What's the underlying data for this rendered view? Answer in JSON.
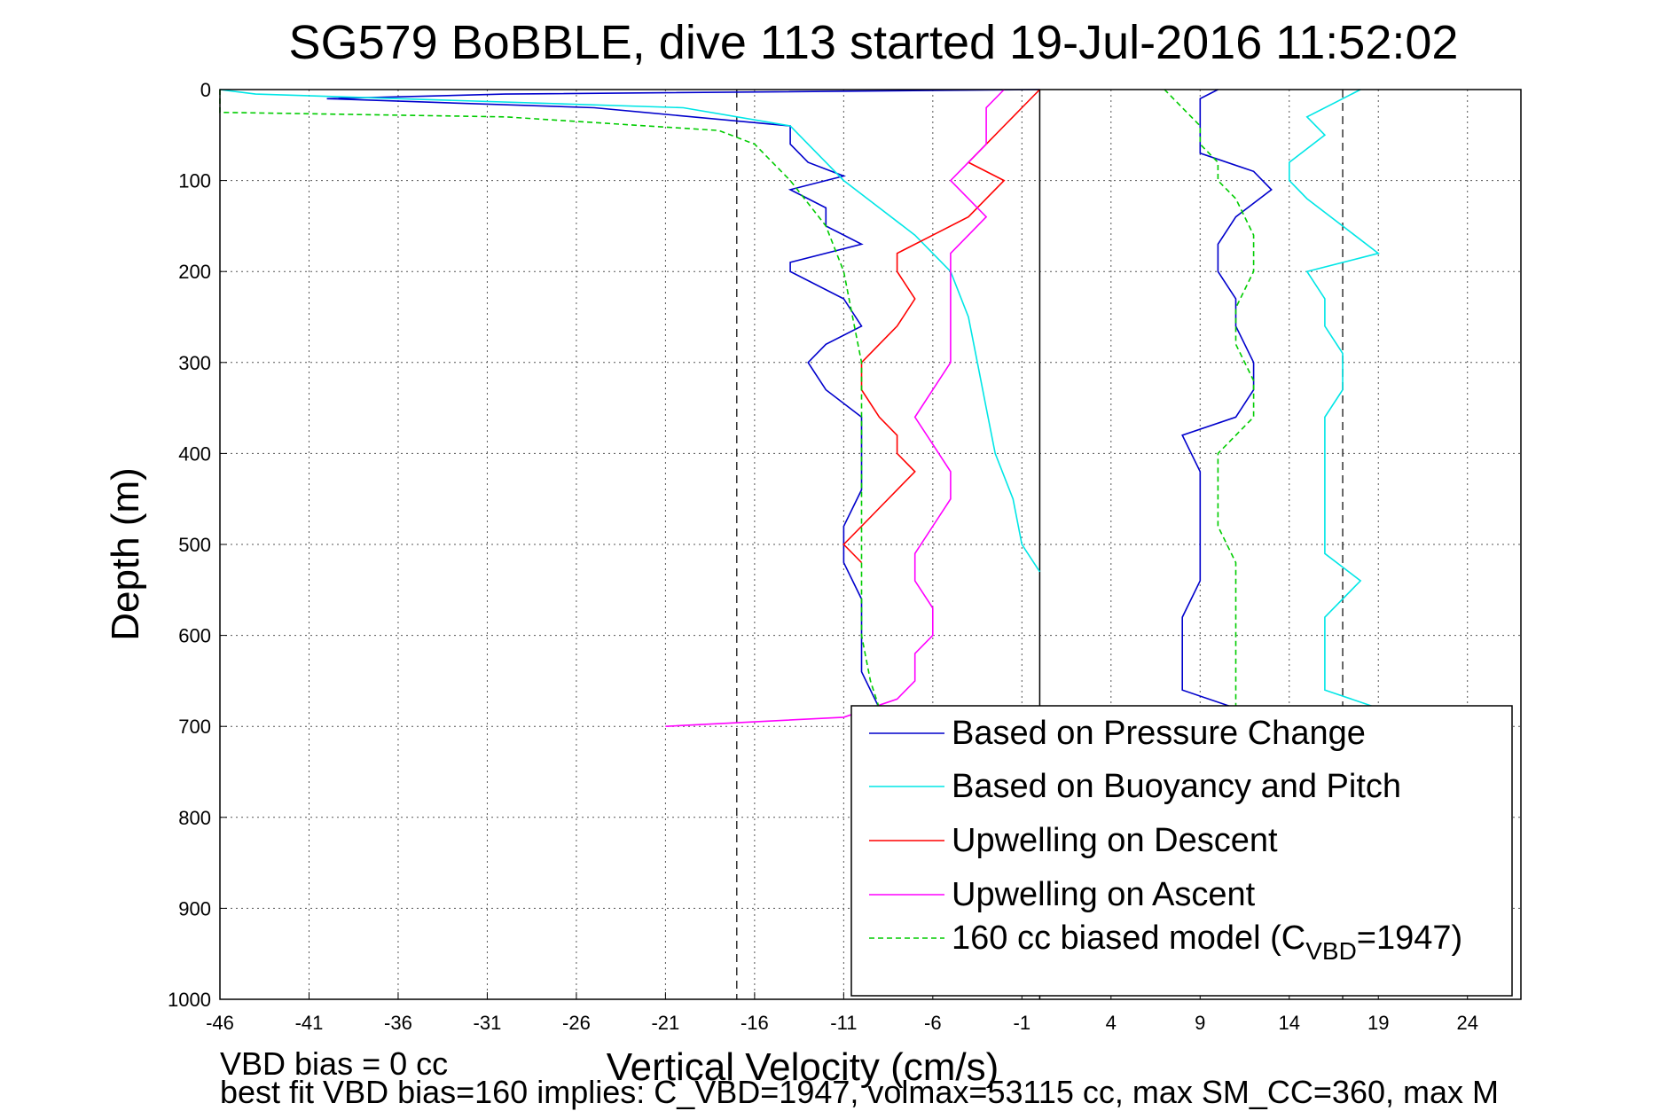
{
  "chart_data": {
    "type": "line",
    "title": "SG579 BoBBLE, dive 113 started 19-Jul-2016 11:52:02",
    "xlabel": "Vertical Velocity (cm/s)",
    "ylabel": "Depth (m)",
    "xlim": [
      -46,
      27
    ],
    "ylim": [
      0,
      1000
    ],
    "y_inverted": true,
    "grid": true,
    "xticks": [
      -46,
      -41,
      -36,
      -31,
      -26,
      -21,
      -16,
      -11,
      -6,
      -1,
      4,
      9,
      14,
      19,
      24
    ],
    "yticks": [
      0,
      100,
      200,
      300,
      400,
      500,
      600,
      700,
      800,
      900,
      1000
    ],
    "vlines_solid": [
      0
    ],
    "vlines_dashed": [
      -17,
      17
    ],
    "legend_position": "bottom-right",
    "series": [
      {
        "name": "Based on Pressure Change",
        "color": "#0000cc",
        "descent": [
          [
            0,
            0
          ],
          [
            5,
            -30
          ],
          [
            10,
            -40
          ],
          [
            20,
            -25
          ],
          [
            40,
            -14
          ],
          [
            60,
            -14
          ],
          [
            80,
            -13
          ],
          [
            95,
            -11
          ],
          [
            110,
            -14
          ],
          [
            130,
            -12
          ],
          [
            150,
            -12
          ],
          [
            170,
            -10
          ],
          [
            190,
            -14
          ],
          [
            200,
            -14
          ],
          [
            230,
            -11
          ],
          [
            260,
            -10
          ],
          [
            280,
            -12
          ],
          [
            300,
            -13
          ],
          [
            330,
            -12
          ],
          [
            360,
            -10
          ],
          [
            400,
            -10
          ],
          [
            440,
            -10
          ],
          [
            480,
            -11
          ],
          [
            520,
            -11
          ],
          [
            560,
            -10
          ],
          [
            600,
            -10
          ],
          [
            640,
            -10
          ],
          [
            680,
            -9
          ]
        ],
        "ascent": [
          [
            680,
            11
          ],
          [
            660,
            8
          ],
          [
            620,
            8
          ],
          [
            580,
            8
          ],
          [
            540,
            9
          ],
          [
            500,
            9
          ],
          [
            460,
            9
          ],
          [
            420,
            9
          ],
          [
            380,
            8
          ],
          [
            360,
            11
          ],
          [
            330,
            12
          ],
          [
            300,
            12
          ],
          [
            260,
            11
          ],
          [
            230,
            11
          ],
          [
            200,
            10
          ],
          [
            170,
            10
          ],
          [
            140,
            11
          ],
          [
            110,
            13
          ],
          [
            90,
            12
          ],
          [
            70,
            9
          ],
          [
            50,
            9
          ],
          [
            30,
            9
          ],
          [
            10,
            9
          ],
          [
            0,
            10
          ]
        ]
      },
      {
        "name": "Based on Buoyancy and Pitch",
        "color": "#00e6e6",
        "descent": [
          [
            0,
            -46
          ],
          [
            5,
            -44
          ],
          [
            20,
            -20
          ],
          [
            40,
            -14
          ],
          [
            60,
            -13
          ],
          [
            80,
            -12
          ],
          [
            100,
            -11
          ],
          [
            130,
            -9
          ],
          [
            160,
            -7
          ],
          [
            200,
            -5
          ],
          [
            250,
            -4
          ],
          [
            300,
            -3.5
          ],
          [
            350,
            -3
          ],
          [
            400,
            -2.5
          ],
          [
            450,
            -1.5
          ],
          [
            500,
            -1
          ],
          [
            530,
            0
          ]
        ],
        "ascent": [
          [
            680,
            19
          ],
          [
            660,
            16
          ],
          [
            620,
            16
          ],
          [
            580,
            16
          ],
          [
            540,
            18
          ],
          [
            510,
            16
          ],
          [
            480,
            16
          ],
          [
            420,
            16
          ],
          [
            360,
            16
          ],
          [
            330,
            17
          ],
          [
            290,
            17
          ],
          [
            260,
            16
          ],
          [
            230,
            16
          ],
          [
            200,
            15
          ],
          [
            180,
            19
          ],
          [
            150,
            17
          ],
          [
            120,
            15
          ],
          [
            100,
            14
          ],
          [
            80,
            14
          ],
          [
            50,
            16
          ],
          [
            30,
            15
          ],
          [
            10,
            17
          ],
          [
            0,
            18
          ]
        ]
      },
      {
        "name": "Upwelling on Descent",
        "color": "#ff0000",
        "values": [
          [
            0,
            0
          ],
          [
            20,
            -1
          ],
          [
            40,
            -2
          ],
          [
            60,
            -3
          ],
          [
            80,
            -4
          ],
          [
            100,
            -2
          ],
          [
            120,
            -3
          ],
          [
            140,
            -4
          ],
          [
            160,
            -6
          ],
          [
            180,
            -8
          ],
          [
            200,
            -8
          ],
          [
            230,
            -7
          ],
          [
            260,
            -8
          ],
          [
            280,
            -9
          ],
          [
            300,
            -10
          ],
          [
            330,
            -10
          ],
          [
            360,
            -9
          ],
          [
            380,
            -8
          ],
          [
            400,
            -8
          ],
          [
            420,
            -7
          ],
          [
            440,
            -8
          ],
          [
            460,
            -9
          ],
          [
            480,
            -10
          ],
          [
            500,
            -11
          ],
          [
            520,
            -10
          ]
        ]
      },
      {
        "name": "Upwelling on Ascent",
        "color": "#ff00ff",
        "values": [
          [
            700,
            -21
          ],
          [
            690,
            -11
          ],
          [
            670,
            -8
          ],
          [
            650,
            -7
          ],
          [
            620,
            -7
          ],
          [
            600,
            -6
          ],
          [
            570,
            -6
          ],
          [
            540,
            -7
          ],
          [
            510,
            -7
          ],
          [
            480,
            -6
          ],
          [
            450,
            -5
          ],
          [
            420,
            -5
          ],
          [
            390,
            -6
          ],
          [
            360,
            -7
          ],
          [
            330,
            -6
          ],
          [
            300,
            -5
          ],
          [
            270,
            -5
          ],
          [
            240,
            -5
          ],
          [
            210,
            -5
          ],
          [
            180,
            -5
          ],
          [
            160,
            -4
          ],
          [
            140,
            -3
          ],
          [
            120,
            -4
          ],
          [
            100,
            -5
          ],
          [
            80,
            -4
          ],
          [
            60,
            -3
          ],
          [
            40,
            -3
          ],
          [
            20,
            -3
          ],
          [
            0,
            -2
          ]
        ]
      },
      {
        "name": "160 cc biased model (C_VBD=1947)",
        "color": "#00cc00",
        "dashed": true,
        "descent": [
          [
            0,
            -46
          ],
          [
            25,
            -46
          ],
          [
            30,
            -30
          ],
          [
            45,
            -18
          ],
          [
            60,
            -16
          ],
          [
            80,
            -15
          ],
          [
            100,
            -14
          ],
          [
            150,
            -12
          ],
          [
            200,
            -11
          ],
          [
            250,
            -10.5
          ],
          [
            300,
            -10
          ],
          [
            350,
            -10
          ],
          [
            400,
            -10
          ],
          [
            450,
            -10
          ],
          [
            500,
            -10
          ],
          [
            550,
            -10
          ],
          [
            600,
            -10
          ],
          [
            650,
            -9.5
          ],
          [
            680,
            -9
          ]
        ],
        "ascent": [
          [
            680,
            11
          ],
          [
            640,
            11
          ],
          [
            600,
            11
          ],
          [
            560,
            11
          ],
          [
            520,
            11
          ],
          [
            480,
            10
          ],
          [
            440,
            10
          ],
          [
            400,
            10
          ],
          [
            360,
            12
          ],
          [
            320,
            12
          ],
          [
            280,
            11
          ],
          [
            240,
            11
          ],
          [
            200,
            12
          ],
          [
            160,
            12
          ],
          [
            120,
            11
          ],
          [
            100,
            10
          ],
          [
            80,
            10
          ],
          [
            60,
            9
          ],
          [
            40,
            9
          ],
          [
            20,
            8
          ],
          [
            0,
            7
          ]
        ]
      }
    ],
    "legend_extra": {
      "prefix": "160 cc biased model (C",
      "subscript": "VBD",
      "suffix": "=1947)"
    },
    "footer_lines": [
      "VBD bias = 0 cc",
      "best fit VBD bias=160 implies: C_VBD=1947, volmax=53115 cc, max SM_CC=360, max M"
    ]
  }
}
